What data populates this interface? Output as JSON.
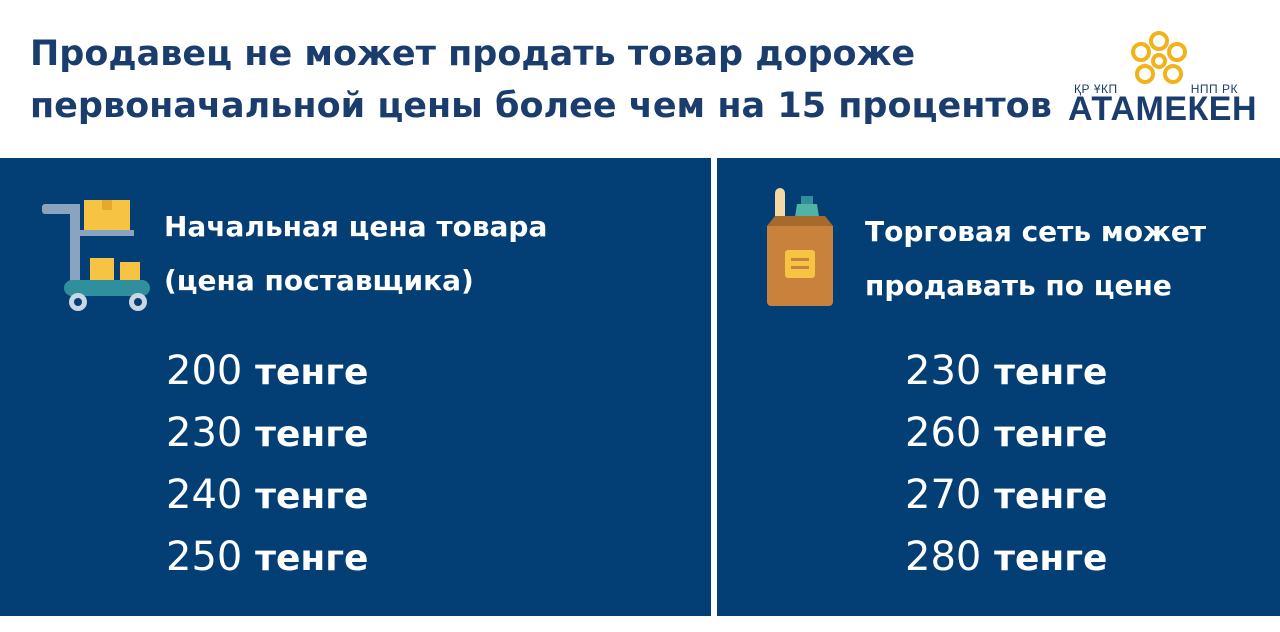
{
  "header": {
    "title_line1": "Продавец не может продать товар дороже",
    "title_line2": "первоначальной цены более чем на 15 процентов"
  },
  "logo": {
    "left_small": "ҚР ҰКП",
    "right_small": "НПП РК",
    "name": "АТАМЕКЕН",
    "icon": "atameken-logo-mark"
  },
  "left_panel": {
    "icon": "shopping-cart-icon",
    "heading_line1": "Начальная цена товара",
    "heading_line2": "(цена поставщика)",
    "prices": [
      {
        "value": "200",
        "unit": "тенге"
      },
      {
        "value": "230",
        "unit": "тенге"
      },
      {
        "value": "240",
        "unit": "тенге"
      },
      {
        "value": "250",
        "unit": "тенге"
      }
    ]
  },
  "right_panel": {
    "icon": "grocery-bag-icon",
    "heading_line1": "Торговая сеть может",
    "heading_line2": "продавать по цене",
    "prices": [
      {
        "value": "230",
        "unit": "тенге"
      },
      {
        "value": "260",
        "unit": "тенге"
      },
      {
        "value": "270",
        "unit": "тенге"
      },
      {
        "value": "280",
        "unit": "тенге"
      }
    ]
  },
  "colors": {
    "title": "#1b3d6d",
    "panel_background": "#033e74",
    "text_on_panel": "#ffffff",
    "logo_accent": "#f2b21a",
    "cart_teal": "#2f8f9d",
    "box_yellow": "#f6c343",
    "bag_brown": "#c9823b"
  }
}
